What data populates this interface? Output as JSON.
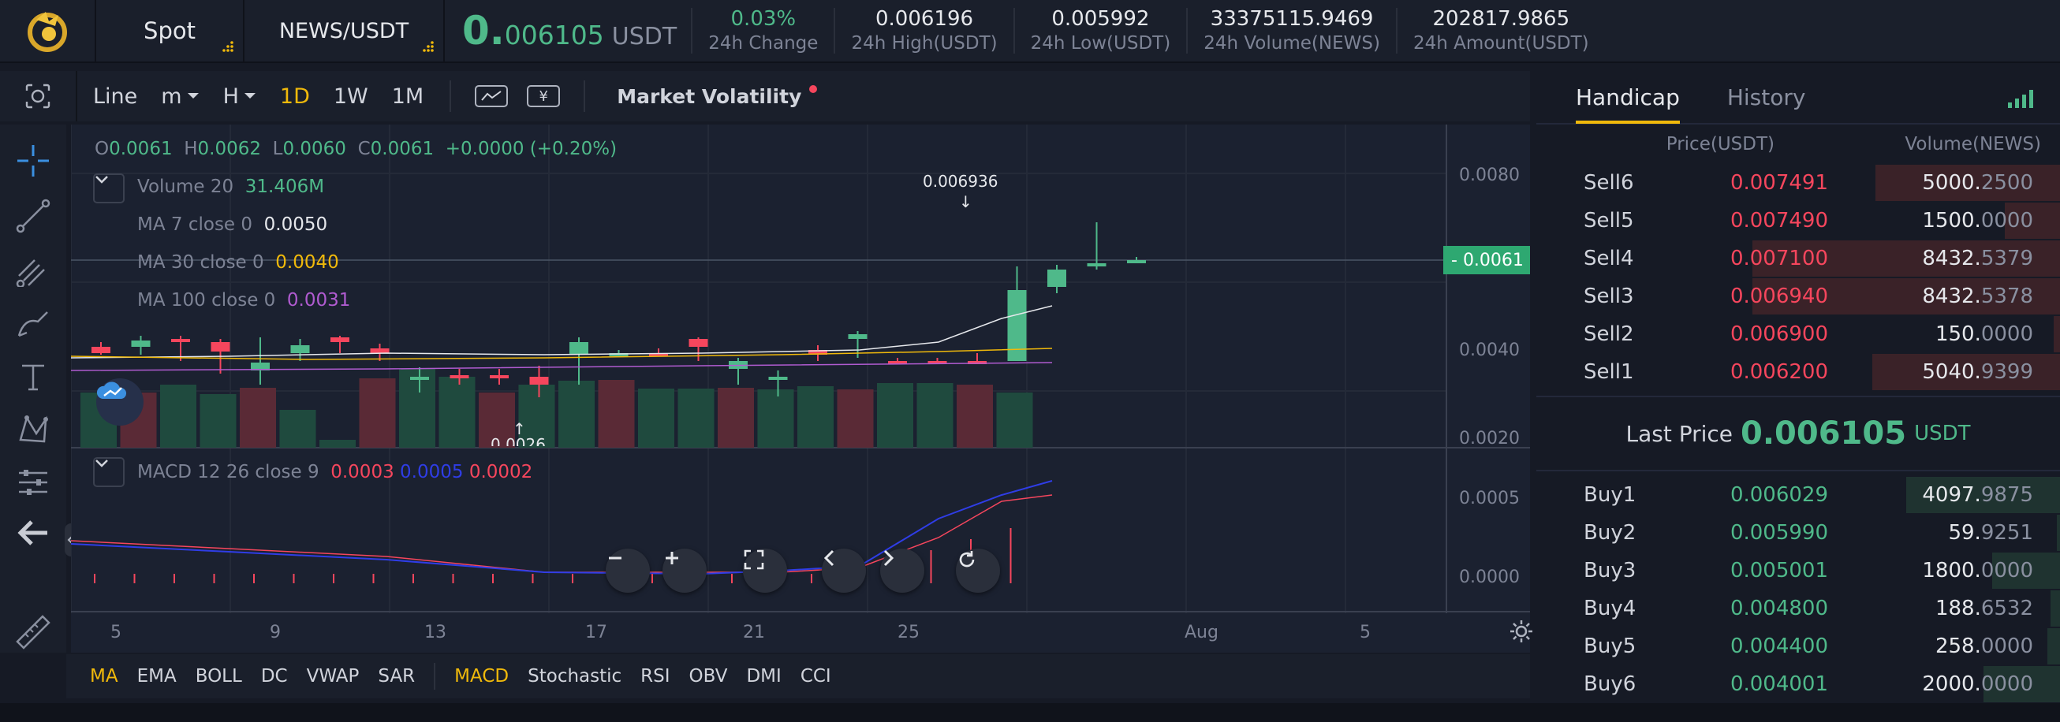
{
  "header": {
    "market_type": "Spot",
    "pair": "NEWS/USDT",
    "price_int": "0.",
    "price_dec": "006105",
    "price_unit": "USDT",
    "stats": [
      {
        "value": "0.03%",
        "label": "24h Change"
      },
      {
        "value": "0.006196",
        "label": "24h High(USDT)"
      },
      {
        "value": "0.005992",
        "label": "24h Low(USDT)"
      },
      {
        "value": "33375115.9469",
        "label": "24h Volume(NEWS)"
      },
      {
        "value": "202817.9865",
        "label": "24h Amount(USDT)"
      }
    ]
  },
  "toolbar": {
    "line": "Line",
    "minute": "m",
    "hour": "H",
    "intervals": [
      "1D",
      "1W",
      "1M"
    ],
    "active_interval": "1D",
    "currency_symbol": "¥",
    "market_volatility": "Market Volatility"
  },
  "legend": {
    "o_label": "O",
    "o_val": "0.0061",
    "h_label": "H",
    "h_val": "0.0062",
    "l_label": "L",
    "l_val": "0.0060",
    "c_label": "C",
    "c_val": "0.0061",
    "change": "+0.0000 (+0.20%)",
    "volume_label": "Volume 20",
    "volume_value": "31.406M",
    "ma7_label": "MA 7 close 0",
    "ma7_value": "0.0050",
    "ma30_label": "MA 30 close 0",
    "ma30_value": "0.0040",
    "ma100_label": "MA 100 close 0",
    "ma100_value": "0.0031",
    "macd_label": "MACD 12 26 close 9",
    "macd_values": [
      "0.0003",
      "0.0005",
      "0.0002"
    ],
    "high_marker": "0.006936",
    "low_marker": "0.0026"
  },
  "axes": {
    "price_ticks": [
      "0.0080",
      "0.0040",
      "0.0020"
    ],
    "last_price_tag": "0.0061",
    "macd_ticks": [
      "0.0005",
      "0.0000"
    ],
    "x_ticks": [
      "5",
      "9",
      "13",
      "17",
      "21",
      "25",
      "Aug",
      "5"
    ]
  },
  "indicators": {
    "main": [
      "MA",
      "EMA",
      "BOLL",
      "DC",
      "VWAP",
      "SAR"
    ],
    "sub": [
      "MACD",
      "Stochastic",
      "RSI",
      "OBV",
      "DMI",
      "CCI"
    ],
    "active_main": "MA",
    "active_sub": "MACD"
  },
  "orderbook": {
    "tabs": [
      "Handicap",
      "History"
    ],
    "active_tab": "Handicap",
    "col_price": "Price(USDT)",
    "col_volume": "Volume(NEWS)",
    "sells": [
      {
        "name": "Sell6",
        "price": "0.007491",
        "vol_int": "5000.",
        "vol_dec": "2500",
        "depth": 0.6
      },
      {
        "name": "Sell5",
        "price": "0.007490",
        "vol_int": "1500.",
        "vol_dec": "0000",
        "depth": 0.18
      },
      {
        "name": "Sell4",
        "price": "0.007100",
        "vol_int": "8432.",
        "vol_dec": "5379",
        "depth": 1.0
      },
      {
        "name": "Sell3",
        "price": "0.006940",
        "vol_int": "8432.",
        "vol_dec": "5378",
        "depth": 1.0
      },
      {
        "name": "Sell2",
        "price": "0.006900",
        "vol_int": "150.",
        "vol_dec": "0000",
        "depth": 0.02
      },
      {
        "name": "Sell1",
        "price": "0.006200",
        "vol_int": "5040.",
        "vol_dec": "9399",
        "depth": 0.61
      }
    ],
    "last_price_label": "Last Price",
    "last_price": "0.006105",
    "last_price_unit": "USDT",
    "buys": [
      {
        "name": "Buy1",
        "price": "0.006029",
        "vol_int": "4097.",
        "vol_dec": "9875",
        "depth": 0.5
      },
      {
        "name": "Buy2",
        "price": "0.005990",
        "vol_int": "59.",
        "vol_dec": "9251",
        "depth": 0.01
      },
      {
        "name": "Buy3",
        "price": "0.005001",
        "vol_int": "1800.",
        "vol_dec": "0000",
        "depth": 0.22
      },
      {
        "name": "Buy4",
        "price": "0.004800",
        "vol_int": "188.",
        "vol_dec": "6532",
        "depth": 0.03
      },
      {
        "name": "Buy5",
        "price": "0.004400",
        "vol_int": "258.",
        "vol_dec": "0000",
        "depth": 0.04
      },
      {
        "name": "Buy6",
        "price": "0.004001",
        "vol_int": "2000.",
        "vol_dec": "0000",
        "depth": 0.25
      }
    ]
  },
  "colors": {
    "up": "#4fb98a",
    "down": "#f6465d",
    "accent": "#f0b90b",
    "ma7": "#e6e8ec",
    "ma30": "#f0b90b",
    "ma100": "#b05bd0",
    "macd_line1": "#f6465d",
    "macd_line2": "#2f3de6"
  }
}
